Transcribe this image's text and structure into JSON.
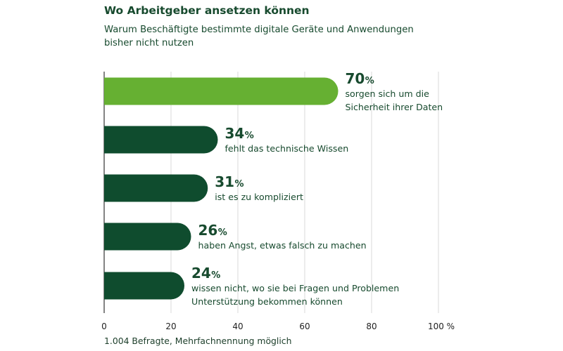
{
  "chart_data": {
    "type": "bar",
    "orientation": "horizontal",
    "title": "Wo Arbeitgeber ansetzen können",
    "subtitle": "Warum Beschäftigte bestimmte digitale Geräte und Anwendungen bisher nicht nutzen",
    "categories": [
      "sorgen sich um die Sicherheit ihrer Daten",
      "fehlt das technische Wissen",
      "ist es zu kompliziert",
      "haben Angst, etwas falsch zu machen",
      "wissen nicht, wo sie bei Fragen und Problemen Unterstützung bekommen können"
    ],
    "label_lines": [
      [
        "sorgen sich um die",
        "Sicherheit ihrer Daten"
      ],
      [
        "fehlt das technische Wissen"
      ],
      [
        "ist es zu kompliziert"
      ],
      [
        "haben Angst, etwas falsch zu machen"
      ],
      [
        "wissen nicht, wo sie bei Fragen und Problemen",
        "Unterstützung bekommen können"
      ]
    ],
    "values": [
      70,
      34,
      31,
      26,
      24
    ],
    "unit": "%",
    "xlim": [
      0,
      100
    ],
    "xticks": [
      "0",
      "20",
      "40",
      "60",
      "80",
      "100 %"
    ],
    "xtick_values": [
      0,
      20,
      40,
      60,
      80,
      100
    ],
    "grid": true,
    "colors": {
      "highlight": "#66b032",
      "default": "#0f4c2e",
      "grid": "#d9d9d9",
      "axis": "#333333"
    },
    "footnote": "1.004 Befragte, Mehrfachnennung möglich"
  }
}
